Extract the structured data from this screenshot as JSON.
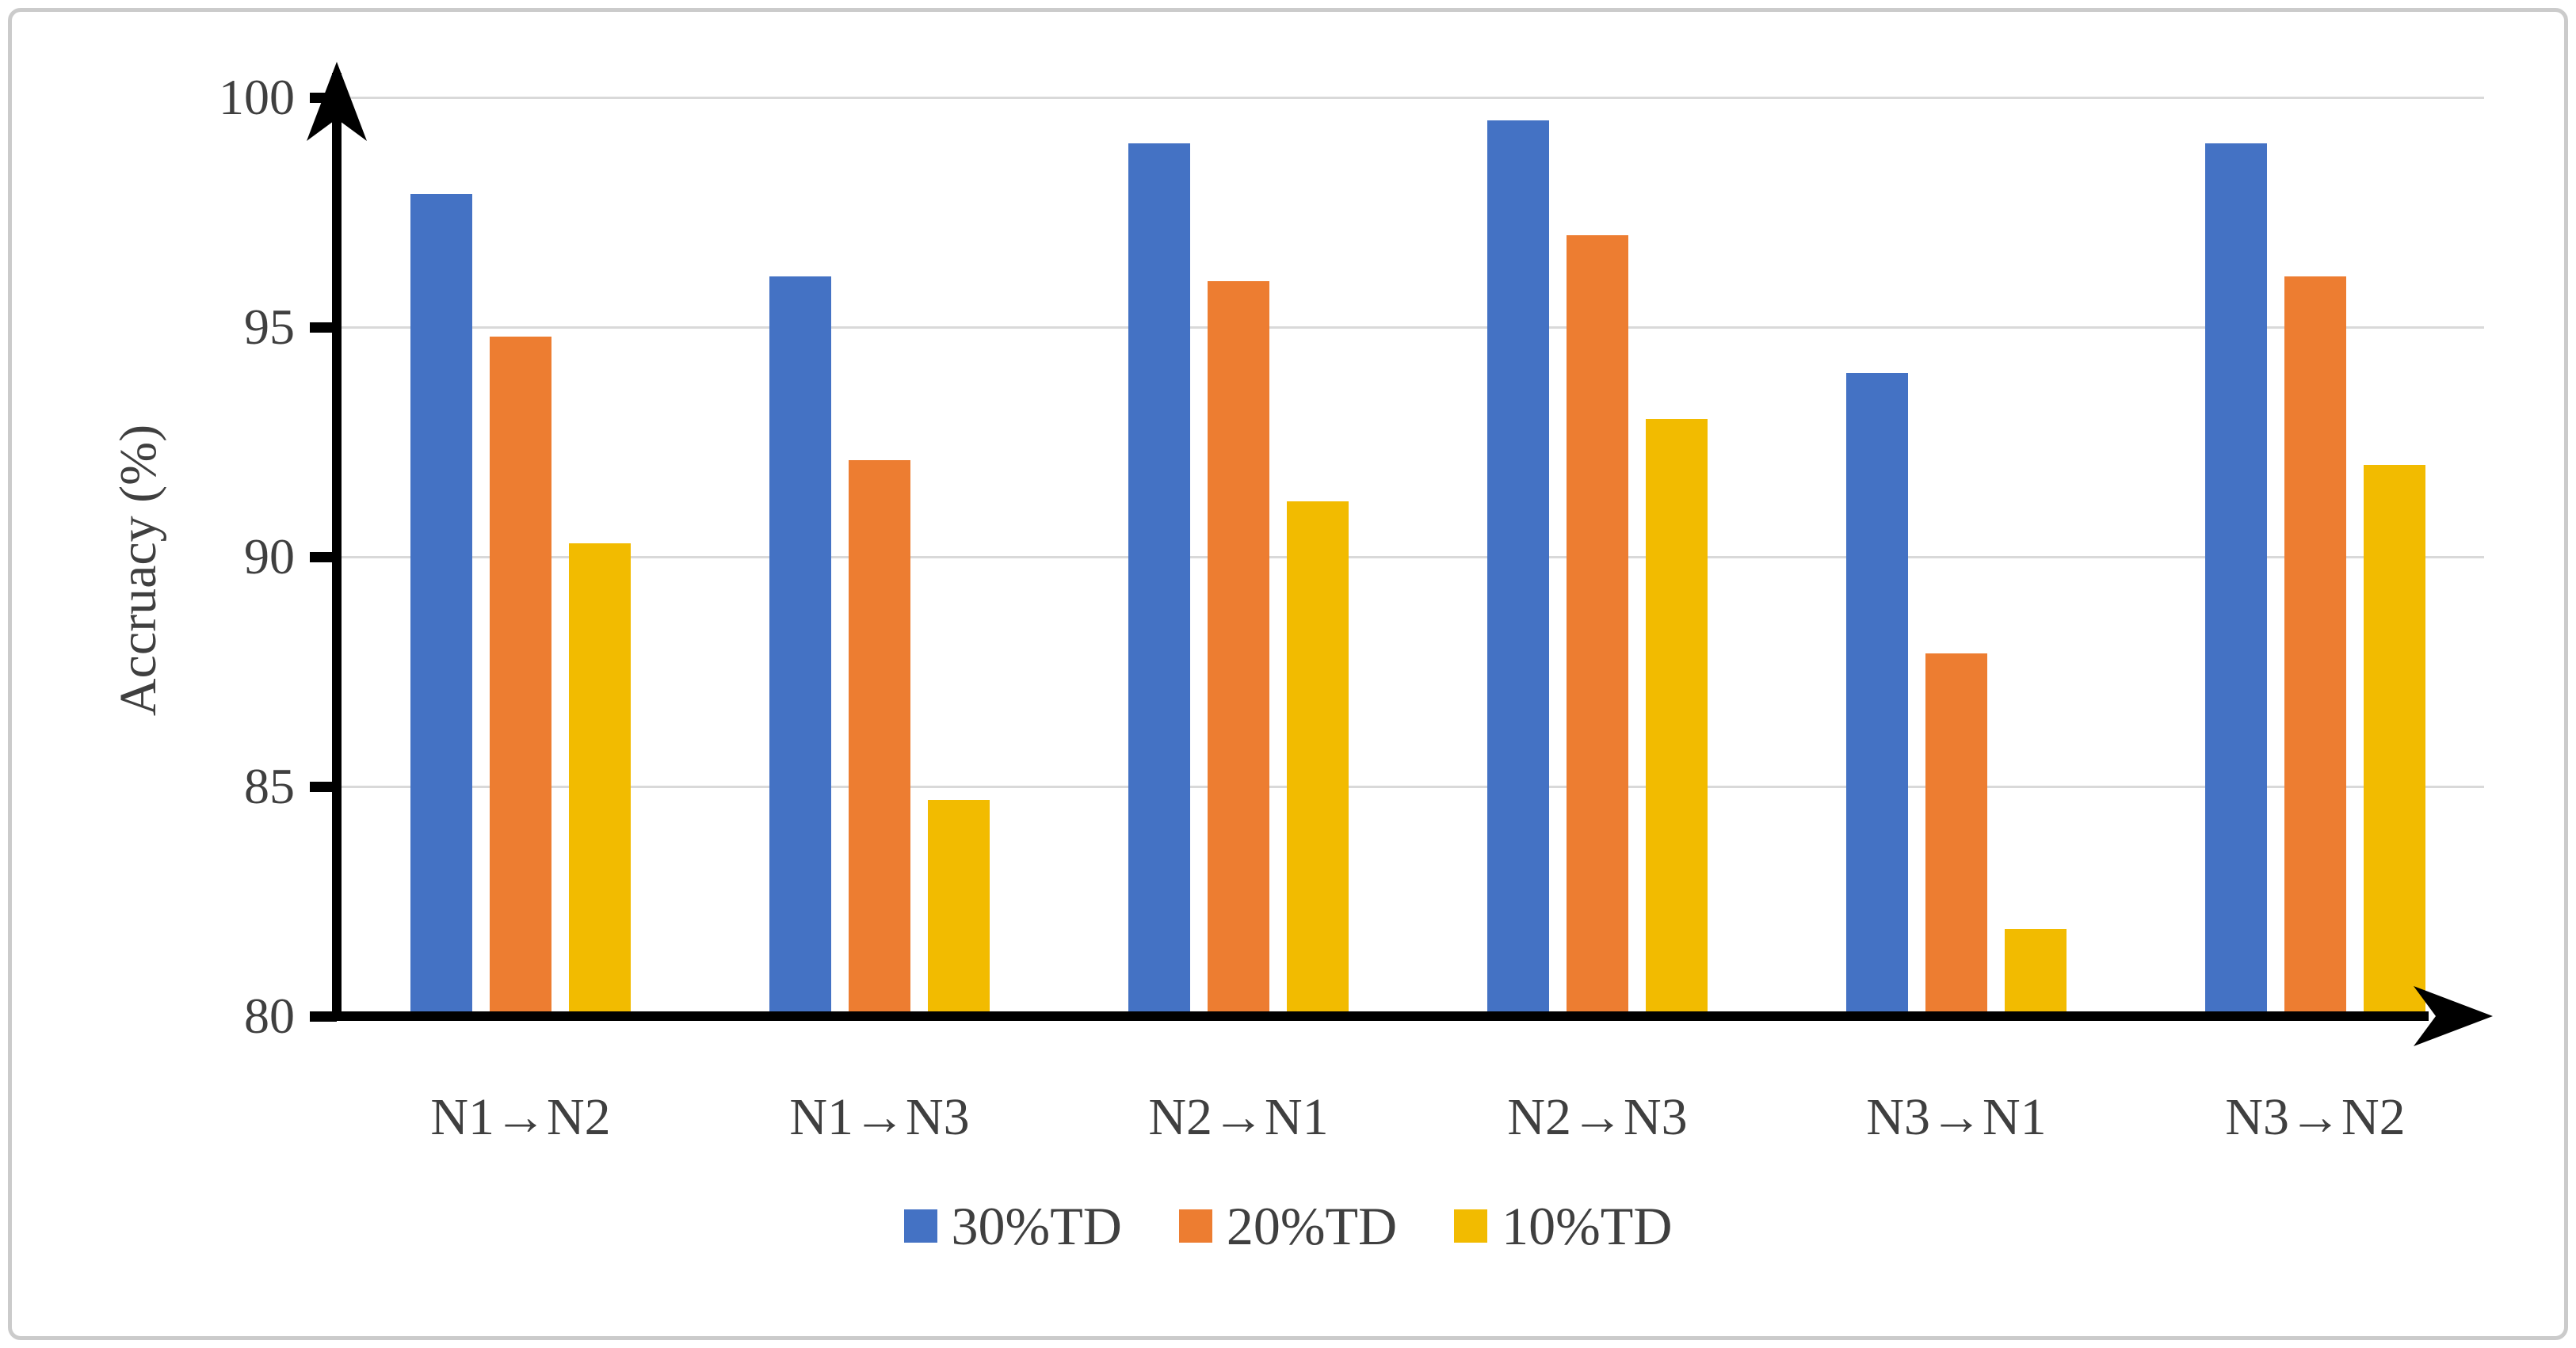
{
  "frame": {
    "border_color": "#cbcbcb"
  },
  "chart_data": {
    "type": "bar",
    "title": "",
    "xlabel": "",
    "ylabel": "Accruacy (%)",
    "categories": [
      "N1→N2",
      "N1→N3",
      "N2→N1",
      "N2→N3",
      "N3→N1",
      "N3→N2"
    ],
    "series": [
      {
        "name": "30%TD",
        "color": "#4472C4",
        "values": [
          97.9,
          96.1,
          99.0,
          99.5,
          94.0,
          99.0
        ]
      },
      {
        "name": "20%TD",
        "color": "#ED7D31",
        "values": [
          94.8,
          92.1,
          96.0,
          97.0,
          87.9,
          96.1
        ]
      },
      {
        "name": "10%TD",
        "color": "#F2BB00",
        "values": [
          90.3,
          84.7,
          91.2,
          93.0,
          81.9,
          92.0
        ]
      }
    ],
    "ylim": [
      80,
      100
    ],
    "yticks": [
      100,
      95,
      90,
      85,
      80
    ],
    "grid": true,
    "legend_position": "bottom",
    "style": {
      "axis_color": "#000000",
      "gridline_color": "#D9D9D9",
      "text_color": "#3F3F3F"
    }
  }
}
